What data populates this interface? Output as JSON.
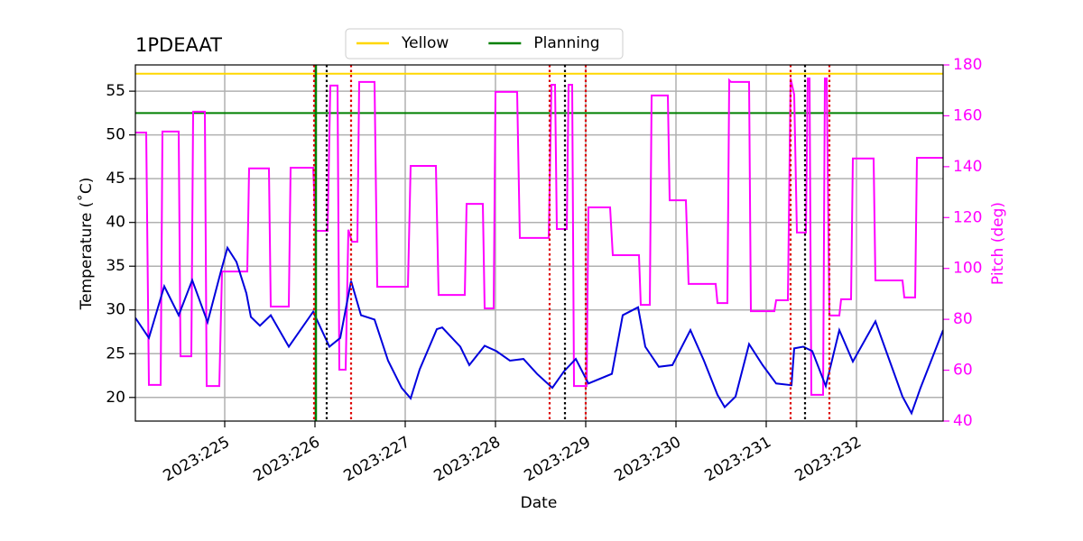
{
  "chart_data": {
    "type": "line",
    "title": "1PDEAAT",
    "xlabel": "Date",
    "ylabel": "Temperature (˚C)",
    "y2label": "Pitch (deg)",
    "y2color": "#ff00ff",
    "xlim": [
      224.01,
      232.96
    ],
    "ylim": [
      17.3,
      58.0
    ],
    "y2lim": [
      40,
      180
    ],
    "xticks": [
      {
        "value": 225,
        "label": "2023:225"
      },
      {
        "value": 226,
        "label": "2023:226"
      },
      {
        "value": 227,
        "label": "2023:227"
      },
      {
        "value": 228,
        "label": "2023:228"
      },
      {
        "value": 229,
        "label": "2023:229"
      },
      {
        "value": 230,
        "label": "2023:230"
      },
      {
        "value": 231,
        "label": "2023:231"
      },
      {
        "value": 232,
        "label": "2023:232"
      }
    ],
    "yticks": [
      20,
      25,
      30,
      35,
      40,
      45,
      50,
      55
    ],
    "y2ticks": [
      40,
      60,
      80,
      100,
      120,
      140,
      160,
      180
    ],
    "grid": true,
    "legend": "top",
    "hlines": [
      {
        "name": "Yellow",
        "y": 57,
        "color": "#ffd700"
      },
      {
        "name": "Planning",
        "y": 52.5,
        "color": "#008000"
      }
    ],
    "vlines": [
      {
        "x": 226.01,
        "color": "#008000",
        "style": "solid"
      },
      {
        "x": 226.13,
        "color": "#000000",
        "style": "dotted"
      },
      {
        "x": 228.77,
        "color": "#000000",
        "style": "dotted"
      },
      {
        "x": 231.43,
        "color": "#000000",
        "style": "dotted"
      },
      {
        "x": 225.99,
        "color": "#dd0000",
        "style": "dotted"
      },
      {
        "x": 226.4,
        "color": "#dd0000",
        "style": "dotted"
      },
      {
        "x": 228.6,
        "color": "#dd0000",
        "style": "dotted"
      },
      {
        "x": 229.0,
        "color": "#dd0000",
        "style": "dotted"
      },
      {
        "x": 231.27,
        "color": "#dd0000",
        "style": "dotted"
      },
      {
        "x": 231.7,
        "color": "#dd0000",
        "style": "dotted"
      }
    ],
    "series": [
      {
        "color": "#ff00ff",
        "axis": "y2",
        "x": [
          224.01,
          224.13,
          224.16,
          224.29,
          224.31,
          224.49,
          224.51,
          224.63,
          224.65,
          224.78,
          224.8,
          224.94,
          224.97,
          225.25,
          225.27,
          225.49,
          225.51,
          225.71,
          225.73,
          225.98,
          226.01,
          226.14,
          226.17,
          226.25,
          226.27,
          226.34,
          226.37,
          226.41,
          226.47,
          226.49,
          226.66,
          226.69,
          227.03,
          227.06,
          227.34,
          227.37,
          227.66,
          227.68,
          227.86,
          227.88,
          227.98,
          228.0,
          228.24,
          228.27,
          228.59,
          228.62,
          228.66,
          228.68,
          228.79,
          228.81,
          228.85,
          228.87,
          229.01,
          229.03,
          229.27,
          229.3,
          229.59,
          229.61,
          229.71,
          229.73,
          229.91,
          229.93,
          230.11,
          230.14,
          230.44,
          230.46,
          230.57,
          230.59,
          230.61,
          230.81,
          230.83,
          231.09,
          231.11,
          231.24,
          231.27,
          231.31,
          231.34,
          231.44,
          231.46,
          231.48,
          231.5,
          231.63,
          231.65,
          231.67,
          231.7,
          231.81,
          231.83,
          231.94,
          231.96,
          232.19,
          232.21,
          232.51,
          232.53,
          232.65,
          232.67,
          232.96
        ],
        "values": [
          153.4,
          153.4,
          54.2,
          54.2,
          153.8,
          153.8,
          65.5,
          65.5,
          161.6,
          161.6,
          53.8,
          53.8,
          98.8,
          98.8,
          139.3,
          139.3,
          85,
          85,
          139.6,
          139.6,
          114.8,
          114.8,
          171.9,
          171.9,
          60.2,
          60.2,
          115.2,
          110.5,
          110.5,
          173.3,
          173.3,
          92.8,
          92.8,
          140.3,
          140.3,
          89.6,
          89.6,
          125.4,
          125.4,
          84.3,
          84.3,
          169.4,
          169.4,
          112,
          112,
          172.2,
          172.2,
          115.5,
          115.5,
          172.2,
          172.2,
          53.8,
          53.8,
          124,
          124,
          105.2,
          105.2,
          85.7,
          85.7,
          168,
          168,
          126.8,
          126.8,
          93.9,
          93.9,
          86.4,
          86.4,
          174,
          173.3,
          173.3,
          83.2,
          83.2,
          87.5,
          87.5,
          174.7,
          168.3,
          114.1,
          114.1,
          174.7,
          174.7,
          50.3,
          50.3,
          174.7,
          174.7,
          81.5,
          81.5,
          87.9,
          87.9,
          143.2,
          143.2,
          95.3,
          95.3,
          88.6,
          88.6,
          143.5,
          143.5
        ]
      },
      {
        "color": "#0000dd",
        "axis": "y",
        "x": [
          224.01,
          224.16,
          224.33,
          224.49,
          224.64,
          224.81,
          224.96,
          225.03,
          225.13,
          225.24,
          225.29,
          225.39,
          225.51,
          225.71,
          225.98,
          226.16,
          226.28,
          226.4,
          226.51,
          226.66,
          226.81,
          226.96,
          227.06,
          227.16,
          227.35,
          227.41,
          227.61,
          227.71,
          227.88,
          228.01,
          228.16,
          228.31,
          228.46,
          228.63,
          228.76,
          228.89,
          229.03,
          229.29,
          229.41,
          229.58,
          229.66,
          229.81,
          229.96,
          230.16,
          230.31,
          230.46,
          230.54,
          230.66,
          230.81,
          230.96,
          231.11,
          231.28,
          231.31,
          231.41,
          231.51,
          231.66,
          231.81,
          231.96,
          232.21,
          232.36,
          232.51,
          232.61,
          232.71,
          232.96
        ],
        "values": [
          29.1,
          26.8,
          32.7,
          29.4,
          33.4,
          28.6,
          34.5,
          37.1,
          35.5,
          31.9,
          29.2,
          28.2,
          29.4,
          25.8,
          29.8,
          25.8,
          26.8,
          33.3,
          29.4,
          28.9,
          24.2,
          21.1,
          19.9,
          23.2,
          27.8,
          28.0,
          25.8,
          23.7,
          25.9,
          25.3,
          24.2,
          24.4,
          22.7,
          21.1,
          23.0,
          24.4,
          21.6,
          22.7,
          29.4,
          30.3,
          25.8,
          23.5,
          23.7,
          27.7,
          24.2,
          20.3,
          18.9,
          20.1,
          26.1,
          23.7,
          21.6,
          21.4,
          25.6,
          25.8,
          25.3,
          21.3,
          27.7,
          24.1,
          28.7,
          24.4,
          20.1,
          18.2,
          21.1,
          27.7
        ]
      }
    ]
  }
}
